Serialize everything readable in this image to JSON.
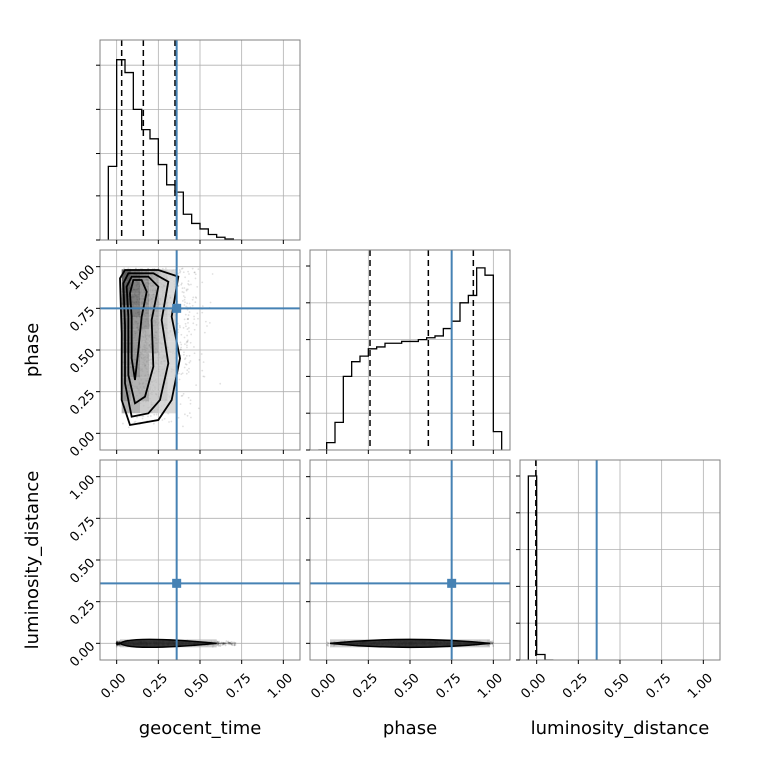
{
  "chart_data": {
    "type": "corner",
    "parameters": [
      "geocent_time",
      "phase",
      "luminosity_distance"
    ],
    "axis_labels": {
      "x": [
        "geocent_time",
        "phase",
        "luminosity_distance"
      ],
      "y": [
        "",
        "phase",
        "luminosity_distance"
      ]
    },
    "ticks": [
      0.0,
      0.25,
      0.5,
      0.75,
      1.0
    ],
    "tick_labels": [
      "0.00",
      "0.25",
      "0.50",
      "0.75",
      "1.00"
    ],
    "ranges": {
      "geocent_time": [
        -0.1,
        1.1
      ],
      "phase": [
        -0.1,
        1.1
      ],
      "luminosity_distance": [
        -0.1,
        1.1
      ]
    },
    "truth": {
      "geocent_time": 0.36,
      "phase": 0.75,
      "luminosity_distance": 0.36,
      "color": "#4682b4"
    },
    "quantiles": {
      "geocent_time": [
        0.03,
        0.16,
        0.35
      ],
      "phase": [
        0.26,
        0.61,
        0.88
      ],
      "luminosity_distance": [
        -0.005
      ]
    },
    "histograms": {
      "geocent_time": {
        "bin_edges": [
          -0.05,
          0.0,
          0.05,
          0.1,
          0.15,
          0.2,
          0.25,
          0.3,
          0.35,
          0.4,
          0.45,
          0.5,
          0.55,
          0.6,
          0.65,
          0.7,
          0.75
        ],
        "counts": [
          0.4,
          0.98,
          0.91,
          0.71,
          0.6,
          0.55,
          0.41,
          0.3,
          0.26,
          0.14,
          0.09,
          0.06,
          0.03,
          0.015,
          0.005,
          0.0
        ]
      },
      "phase": {
        "bin_edges": [
          -0.05,
          0.0,
          0.05,
          0.1,
          0.15,
          0.2,
          0.25,
          0.3,
          0.35,
          0.4,
          0.45,
          0.5,
          0.55,
          0.6,
          0.65,
          0.7,
          0.75,
          0.8,
          0.85,
          0.9,
          0.95,
          1.0,
          1.05
        ],
        "counts": [
          0.0,
          0.04,
          0.15,
          0.4,
          0.48,
          0.51,
          0.55,
          0.56,
          0.58,
          0.58,
          0.59,
          0.59,
          0.6,
          0.61,
          0.62,
          0.66,
          0.7,
          0.8,
          0.84,
          0.99,
          0.95,
          0.1
        ]
      },
      "luminosity_distance": {
        "bin_edges": [
          -0.05,
          0.0,
          0.05,
          0.1
        ],
        "counts": [
          1.0,
          0.03,
          0.0
        ]
      }
    },
    "scatter_2d": {
      "phase_vs_geocent_time": {
        "x_range": [
          0.0,
          0.75
        ],
        "y_range": [
          0.0,
          1.0
        ],
        "contour_x_extent": [
          0.02,
          0.38
        ],
        "contour_y_extent": [
          0.05,
          0.97
        ]
      },
      "luminosity_distance_vs_geocent_time": {
        "x_range": [
          0.0,
          0.72
        ],
        "y_range": [
          -0.03,
          0.04
        ]
      },
      "luminosity_distance_vs_phase": {
        "x_range": [
          0.0,
          1.0
        ],
        "y_range": [
          -0.03,
          0.04
        ]
      }
    }
  }
}
